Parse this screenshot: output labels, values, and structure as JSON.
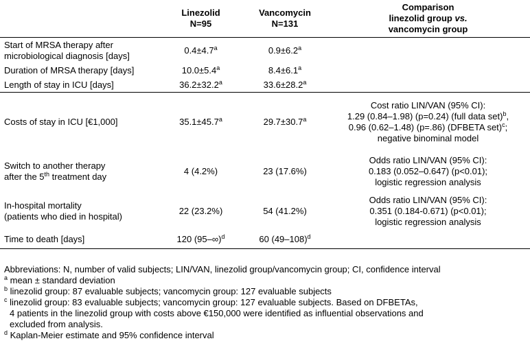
{
  "table": {
    "header": {
      "col1": "",
      "col2_line1": "Linezolid",
      "col2_line2": "N=95",
      "col3_line1": "Vancomycin",
      "col3_line2": "N=131",
      "col4_line1": "Comparison",
      "col4_line2_a": "linezolid group ",
      "col4_line2_b": "vs.",
      "col4_line3": "vancomycin group"
    },
    "rows": [
      {
        "label1": "Start of MRSA therapy after",
        "label2": "microbiological diagnosis [days]",
        "lin": "0.4±4.7",
        "lin_sup": "a",
        "van": "0.9±6.2",
        "van_sup": "a"
      },
      {
        "label1": "Duration of MRSA therapy [days]",
        "lin": "10.0±5.4",
        "lin_sup": "a",
        "van": "8.4±6.1",
        "van_sup": "a"
      },
      {
        "label1": "Length of stay in ICU [days]",
        "lin": "36.2±32.2",
        "lin_sup": "a",
        "van": "33.6±28.2",
        "van_sup": "a"
      },
      {
        "label1": "Costs of stay in ICU [€1,000]",
        "lin": "35.1±45.7",
        "lin_sup": "a",
        "van": "29.7±30.7",
        "van_sup": "a",
        "cmp1": "Cost ratio LIN/VAN (95% CI):",
        "cmp2a": "1.29 (0.84–1.98) (p=0.24) (full data set)",
        "cmp2_sup": "b",
        "cmp2b": ",",
        "cmp3a": "0.96 (0.62–1.48) (p=.86) (DFBETA set)",
        "cmp3_sup": "c",
        "cmp3b": ";",
        "cmp4": "negative binominal model"
      },
      {
        "label1": "Switch to another therapy",
        "label2a": "after the 5",
        "label2_sup": "th",
        "label2b": " treatment day",
        "lin": "4 (4.2%)",
        "van": "23 (17.6%)",
        "cmp1": "Odds ratio LIN/VAN (95% CI):",
        "cmp2": "0.183 (0.052–0.647) (p<0.01);",
        "cmp3": "logistic regression analysis"
      },
      {
        "label1": "In-hospital mortality",
        "label2": "(patients who died in hospital)",
        "lin": "22 (23.2%)",
        "van": "54 (41.2%)",
        "cmp1": "Odds ratio LIN/VAN (95% CI):",
        "cmp2": "0.351 (0.184-0.671) (p<0.01);",
        "cmp3": "logistic regression analysis"
      },
      {
        "label1": "Time to death [days]",
        "lin": "120 (95–∞)",
        "lin_sup": "d",
        "van": "60 (49–108)",
        "van_sup": "d"
      }
    ]
  },
  "notes": {
    "abbrev": "Abbreviations: N, number of valid subjects; LIN/VAN, linezolid group/vancomycin group; CI, confidence interval",
    "a_mark": "a",
    "a_text": " mean ± standard deviation",
    "b_mark": "b",
    "b_text": " linezolid group: 87 evaluable subjects; vancomycin group: 127 evaluable subjects",
    "c_mark": "c",
    "c_text": " linezolid group: 83 evaluable subjects; vancomycin group: 127 evaluable subjects. Based on DFBETAs,",
    "c_text2": "4 patients in the linezolid group with costs above €150,000 were identified as influential observations and",
    "c_text3": "excluded from analysis.",
    "d_mark": "d",
    "d_text": " Kaplan-Meier estimate and 95% confidence interval"
  }
}
